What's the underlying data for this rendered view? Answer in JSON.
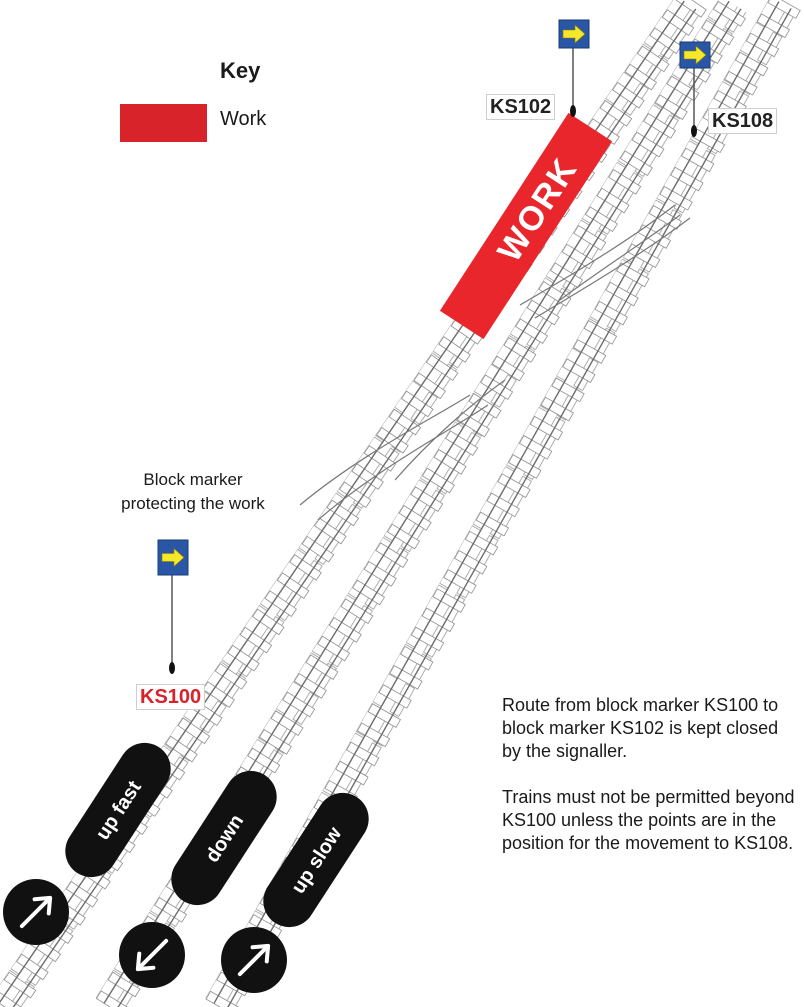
{
  "key": {
    "title": "Key",
    "items": [
      {
        "label": "Work",
        "color": "#d8232a"
      }
    ]
  },
  "work_zone": {
    "label": "WORK",
    "color": "#e8262c"
  },
  "block_markers": [
    {
      "id": "KS100",
      "label_color": "#d8232a"
    },
    {
      "id": "KS102",
      "label_color": "#222222"
    },
    {
      "id": "KS108",
      "label_color": "#222222"
    }
  ],
  "block_marker_board": {
    "background": "#2a56a6",
    "arrow": "#f5e72a"
  },
  "caption": {
    "line1": "Block marker",
    "line2": "protecting the work"
  },
  "lines": [
    {
      "name": "up fast",
      "direction": "up"
    },
    {
      "name": "down",
      "direction": "down"
    },
    {
      "name": "up slow",
      "direction": "up"
    }
  ],
  "notes": [
    "Route from block marker KS100 to block marker KS102 is kept closed by the signaller.",
    "Trains must not be permitted beyond KS100 unless the points are in the position for the movement to KS108."
  ]
}
